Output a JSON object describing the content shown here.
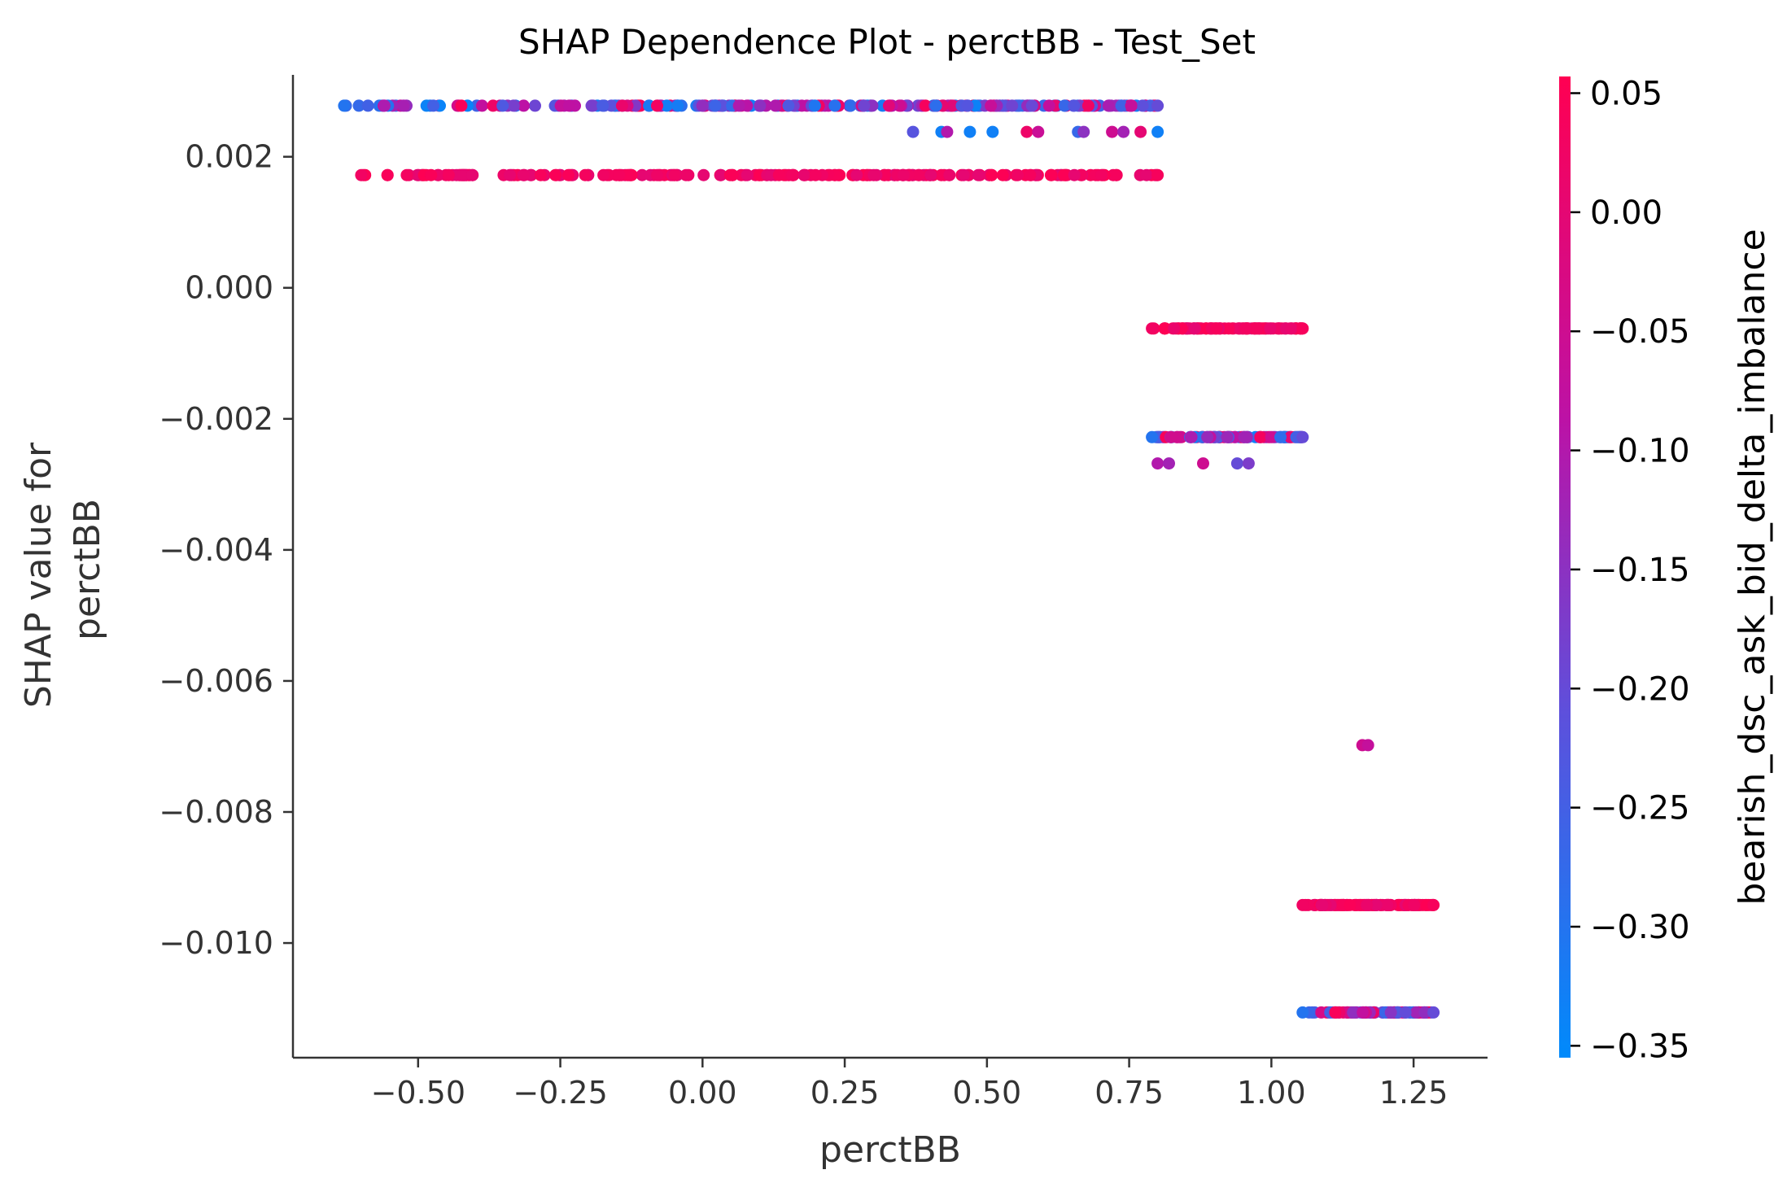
{
  "chart_data": {
    "type": "scatter",
    "title": "SHAP Dependence Plot - perctBB - Test_Set",
    "xlabel": "perctBB",
    "ylabel": [
      "SHAP value for",
      "perctBB"
    ],
    "xlim": [
      -0.72,
      1.38
    ],
    "ylim": [
      -0.01175,
      0.00325
    ],
    "x_ticks": [
      -0.5,
      -0.25,
      0.0,
      0.25,
      0.5,
      0.75,
      1.0,
      1.25
    ],
    "x_tick_labels": [
      "−0.50",
      "−0.25",
      "0.00",
      "0.25",
      "0.50",
      "0.75",
      "1.00",
      "1.25"
    ],
    "y_ticks": [
      0.002,
      0.0,
      -0.002,
      -0.004,
      -0.006,
      -0.008,
      -0.01
    ],
    "y_tick_labels": [
      "0.002",
      "0.000",
      "−0.002",
      "−0.004",
      "−0.006",
      "−0.008",
      "−0.010"
    ],
    "grid": false,
    "colorbar": {
      "label": "bearish_dsc_ask_bid_delta_imbalance",
      "range": [
        -0.355,
        0.057
      ],
      "ticks": [
        0.05,
        0.0,
        -0.05,
        -0.1,
        -0.15,
        -0.2,
        -0.25,
        -0.3,
        -0.35
      ],
      "tick_labels": [
        "0.05",
        "0.00",
        "−0.05",
        "−0.10",
        "−0.15",
        "−0.20",
        "−0.25",
        "−0.30",
        "−0.35"
      ],
      "colors": [
        "#008afb",
        "#ff0052"
      ]
    },
    "clusters": [
      {
        "y": 0.00278,
        "x_min": -0.63,
        "x_max": 0.8,
        "pattern": "mixed",
        "n": 240,
        "seed": 11
      },
      {
        "y": 0.00238,
        "x": [
          0.37,
          0.42,
          0.43,
          0.47,
          0.51,
          0.57,
          0.59,
          0.66,
          0.67,
          0.72,
          0.74,
          0.77,
          0.8
        ],
        "c": [
          -0.22,
          -0.33,
          -0.1,
          -0.33,
          -0.33,
          0.02,
          -0.06,
          -0.27,
          -0.15,
          -0.05,
          -0.12,
          0.0,
          -0.33
        ]
      },
      {
        "y": 0.00172,
        "x_min": -0.6,
        "x_max": 0.8,
        "pattern": "pink",
        "n": 200,
        "seed": 23
      },
      {
        "y": -0.00062,
        "x_min": 0.79,
        "x_max": 1.055,
        "pattern": "pink",
        "n": 110,
        "seed": 31
      },
      {
        "y": -0.00228,
        "x_min": 0.79,
        "x_max": 1.055,
        "pattern": "mixed",
        "n": 90,
        "seed": 41
      },
      {
        "y": -0.00268,
        "x": [
          0.8,
          0.82,
          0.88,
          0.94,
          0.96
        ],
        "c": [
          -0.1,
          -0.12,
          -0.05,
          -0.2,
          -0.17
        ]
      },
      {
        "y": -0.00698,
        "x": [
          1.16,
          1.17
        ],
        "c": [
          -0.05,
          -0.07
        ]
      },
      {
        "y": -0.00942,
        "x_min": 1.055,
        "x_max": 1.285,
        "pattern": "pink",
        "n": 100,
        "seed": 53
      },
      {
        "y": -0.01106,
        "x_min": 1.055,
        "x_max": 1.285,
        "pattern": "mixed",
        "n": 85,
        "seed": 61
      }
    ]
  }
}
